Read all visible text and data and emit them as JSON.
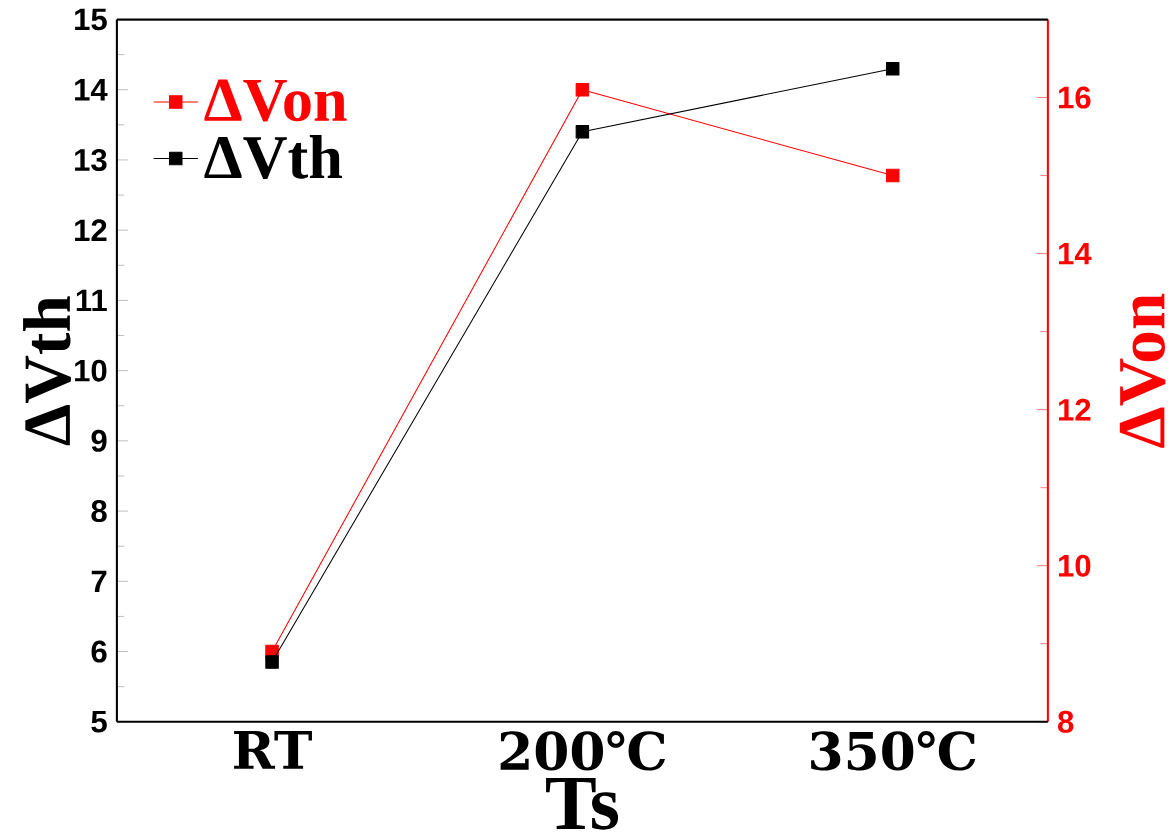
{
  "chart_data": {
    "type": "line",
    "xlabel": "Ts",
    "ylabel": "ΔVth",
    "y2label": "ΔVon",
    "categories": [
      "RT",
      "200℃",
      "350℃"
    ],
    "series": [
      {
        "name": "ΔVth",
        "color": "#000000",
        "values": [
          5.85,
          13.4,
          14.3
        ]
      },
      {
        "name": "ΔVon",
        "color": "#ff0000",
        "values": [
          8.9,
          16.1,
          15.0
        ],
        "axis": "y2"
      }
    ],
    "ylim": [
      5,
      15
    ],
    "yticks": [
      5,
      6,
      7,
      8,
      9,
      10,
      11,
      12,
      13,
      14,
      15
    ],
    "y2lim": [
      8,
      17
    ],
    "y2ticks": [
      8,
      10,
      12,
      14,
      16
    ],
    "marker": "square",
    "line_style": "solid",
    "legend": "top left",
    "grid": false
  }
}
